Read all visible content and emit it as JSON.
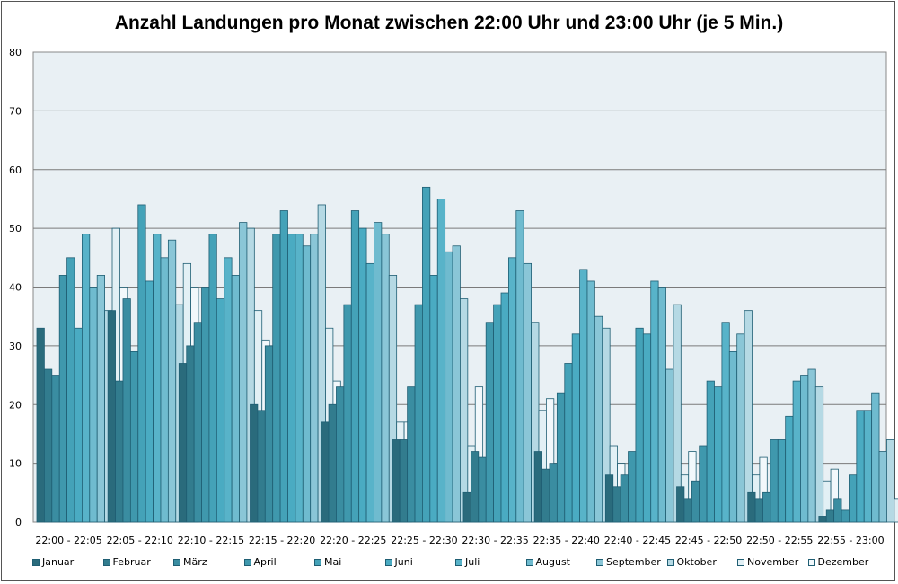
{
  "chart_data": {
    "type": "bar",
    "title": "Anzahl Landungen pro Monat zwischen 22:00 Uhr und 23:00 Uhr (je 5 Min.)",
    "xlabel": "",
    "ylabel": "",
    "ylim": [
      0,
      80
    ],
    "yticks": [
      0,
      10,
      20,
      30,
      40,
      50,
      60,
      70,
      80
    ],
    "grid": true,
    "legend_position": "bottom",
    "categories": [
      "22:00 - 22:05",
      "22:05 - 22:10",
      "22:10 - 22:15",
      "22:15 - 22:20",
      "22:20 - 22:25",
      "22:25 - 22:30",
      "22:30 - 22:35",
      "22:35 - 22:40",
      "22:40 - 22:45",
      "22:45 - 22:50",
      "22:50 - 22:55",
      "22:55 - 23:00"
    ],
    "series": [
      {
        "name": "Januar",
        "color": "#2a6b7c",
        "values": [
          33,
          36,
          27,
          20,
          17,
          14,
          5,
          12,
          8,
          6,
          5,
          1
        ]
      },
      {
        "name": "Februar",
        "color": "#327c8e",
        "values": [
          26,
          24,
          30,
          19,
          20,
          14,
          12,
          9,
          6,
          4,
          4,
          2
        ]
      },
      {
        "name": "März",
        "color": "#3a8da1",
        "values": [
          25,
          38,
          34,
          30,
          23,
          23,
          11,
          10,
          8,
          7,
          5,
          4
        ]
      },
      {
        "name": "April",
        "color": "#3f98ad",
        "values": [
          42,
          29,
          40,
          49,
          37,
          37,
          34,
          22,
          12,
          13,
          14,
          2
        ]
      },
      {
        "name": "Mai",
        "color": "#44a2b8",
        "values": [
          45,
          54,
          49,
          53,
          53,
          57,
          37,
          27,
          33,
          24,
          14,
          8
        ]
      },
      {
        "name": "Juni",
        "color": "#4aabc2",
        "values": [
          33,
          41,
          38,
          49,
          50,
          42,
          39,
          32,
          32,
          23,
          18,
          19
        ]
      },
      {
        "name": "Juli",
        "color": "#58b3c9",
        "values": [
          49,
          49,
          45,
          49,
          44,
          55,
          45,
          43,
          41,
          34,
          24,
          19
        ]
      },
      {
        "name": "August",
        "color": "#6fbbcf",
        "values": [
          40,
          45,
          42,
          47,
          51,
          46,
          53,
          41,
          40,
          29,
          25,
          22
        ]
      },
      {
        "name": "September",
        "color": "#8ac6d7",
        "values": [
          42,
          48,
          51,
          49,
          49,
          47,
          44,
          35,
          26,
          32,
          26,
          12
        ]
      },
      {
        "name": "Oktober",
        "color": "#b5d9e4",
        "values": [
          36,
          37,
          50,
          54,
          42,
          38,
          34,
          33,
          37,
          36,
          23,
          14
        ]
      },
      {
        "name": "November",
        "color": "#e2f0f5",
        "values": [
          50,
          44,
          36,
          33,
          17,
          13,
          19,
          13,
          8,
          8,
          7,
          4
        ]
      },
      {
        "name": "Dezember",
        "color": "#f2f8fb",
        "values": [
          40,
          40,
          31,
          24,
          17,
          23,
          21,
          10,
          12,
          11,
          9,
          4
        ]
      }
    ]
  }
}
